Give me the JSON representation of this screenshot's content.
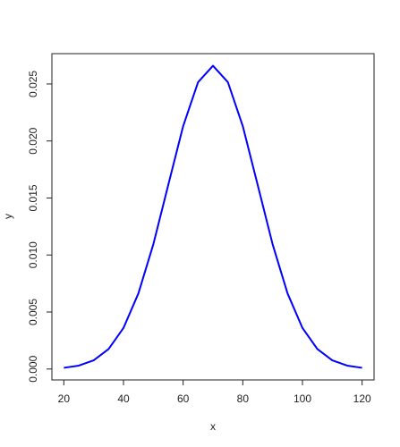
{
  "chart_data": {
    "type": "line",
    "x_label": "x",
    "y_label": "y",
    "x": [
      20,
      25,
      30,
      35,
      40,
      45,
      50,
      55,
      60,
      65,
      70,
      75,
      80,
      85,
      90,
      95,
      100,
      105,
      110,
      115,
      120
    ],
    "series": [
      {
        "name": "y",
        "color": "#0000ff",
        "values": [
          0.000103,
          0.000295,
          0.00076,
          0.001748,
          0.003599,
          0.006632,
          0.010934,
          0.016131,
          0.021297,
          0.025159,
          0.026596,
          0.025159,
          0.021297,
          0.016131,
          0.010934,
          0.006632,
          0.003599,
          0.001748,
          0.00076,
          0.000295,
          0.000103
        ]
      }
    ],
    "xlim": [
      16,
      124
    ],
    "ylim": [
      -0.00096,
      0.02766
    ],
    "xticks": [
      20,
      40,
      60,
      80,
      100,
      120
    ],
    "yticks": [
      {
        "value": 0,
        "label": "0.000"
      },
      {
        "value": 0.005,
        "label": "0.005"
      },
      {
        "value": 0.01,
        "label": "0.010"
      },
      {
        "value": 0.015,
        "label": "0.015"
      },
      {
        "value": 0.02,
        "label": "0.020"
      },
      {
        "value": 0.025,
        "label": "0.025"
      }
    ],
    "grid": false
  }
}
